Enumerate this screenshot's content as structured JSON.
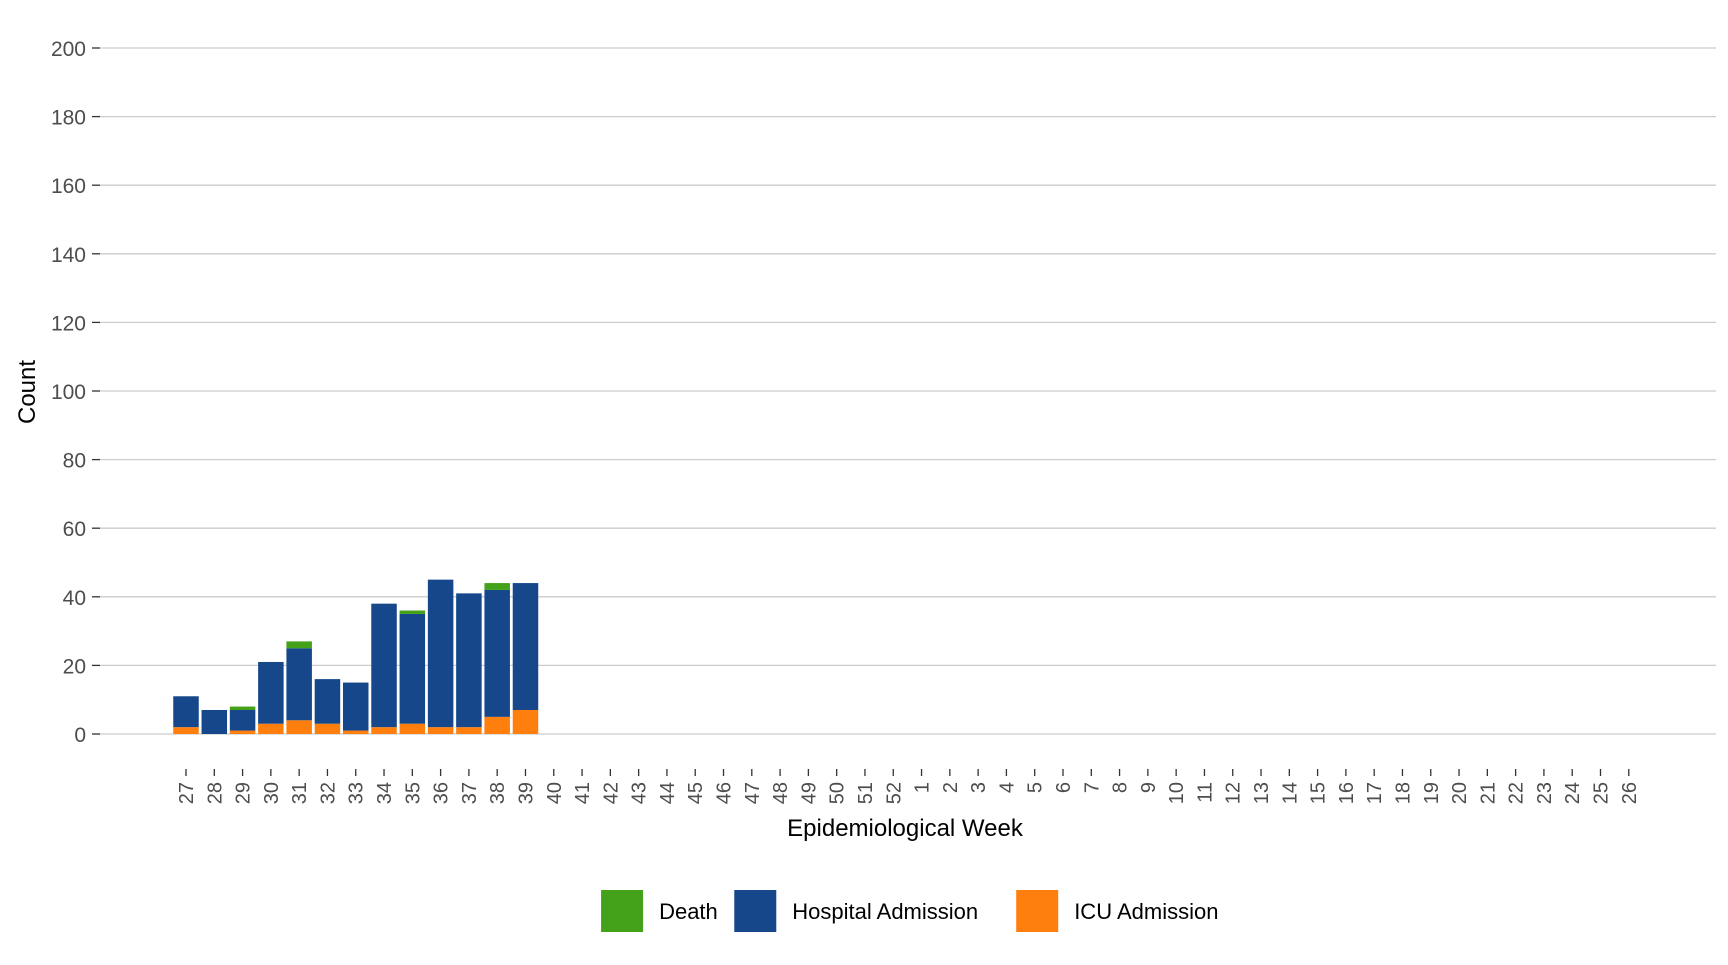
{
  "chart_data": {
    "type": "bar",
    "stacked": true,
    "title": "",
    "xlabel": "Epidemiological Week",
    "ylabel": "Count",
    "ylim": [
      0,
      200
    ],
    "yticks": [
      0,
      20,
      40,
      60,
      80,
      100,
      120,
      140,
      160,
      180,
      200
    ],
    "grid": "horizontal",
    "legend_position": "bottom",
    "categories": [
      "27",
      "28",
      "29",
      "30",
      "31",
      "32",
      "33",
      "34",
      "35",
      "36",
      "37",
      "38",
      "39",
      "40",
      "41",
      "42",
      "43",
      "44",
      "45",
      "46",
      "47",
      "48",
      "49",
      "50",
      "51",
      "52",
      "1",
      "2",
      "3",
      "4",
      "5",
      "6",
      "7",
      "8",
      "9",
      "10",
      "11",
      "12",
      "13",
      "14",
      "15",
      "16",
      "17",
      "18",
      "19",
      "20",
      "21",
      "22",
      "23",
      "24",
      "25",
      "26"
    ],
    "series": [
      {
        "name": "ICU Admission",
        "color": "#FF7F0E",
        "values": [
          2,
          0,
          1,
          3,
          4,
          3,
          1,
          2,
          3,
          2,
          2,
          5,
          7,
          0,
          0,
          0,
          0,
          0,
          0,
          0,
          0,
          0,
          0,
          0,
          0,
          0,
          0,
          0,
          0,
          0,
          0,
          0,
          0,
          0,
          0,
          0,
          0,
          0,
          0,
          0,
          0,
          0,
          0,
          0,
          0,
          0,
          0,
          0,
          0,
          0,
          0,
          0
        ]
      },
      {
        "name": "Hospital Admission",
        "color": "#15478A",
        "values": [
          9,
          7,
          6,
          18,
          21,
          13,
          14,
          36,
          32,
          43,
          39,
          37,
          37,
          0,
          0,
          0,
          0,
          0,
          0,
          0,
          0,
          0,
          0,
          0,
          0,
          0,
          0,
          0,
          0,
          0,
          0,
          0,
          0,
          0,
          0,
          0,
          0,
          0,
          0,
          0,
          0,
          0,
          0,
          0,
          0,
          0,
          0,
          0,
          0,
          0,
          0,
          0
        ]
      },
      {
        "name": "Death",
        "color": "#44A11A",
        "values": [
          0,
          0,
          1,
          0,
          2,
          0,
          0,
          0,
          1,
          0,
          0,
          2,
          0,
          0,
          0,
          0,
          0,
          0,
          0,
          0,
          0,
          0,
          0,
          0,
          0,
          0,
          0,
          0,
          0,
          0,
          0,
          0,
          0,
          0,
          0,
          0,
          0,
          0,
          0,
          0,
          0,
          0,
          0,
          0,
          0,
          0,
          0,
          0,
          0,
          0,
          0,
          0
        ]
      }
    ],
    "legend": [
      {
        "name": "Death",
        "color": "#44A11A"
      },
      {
        "name": "Hospital Admission",
        "color": "#15478A"
      },
      {
        "name": "ICU Admission",
        "color": "#FF7F0E"
      }
    ]
  }
}
